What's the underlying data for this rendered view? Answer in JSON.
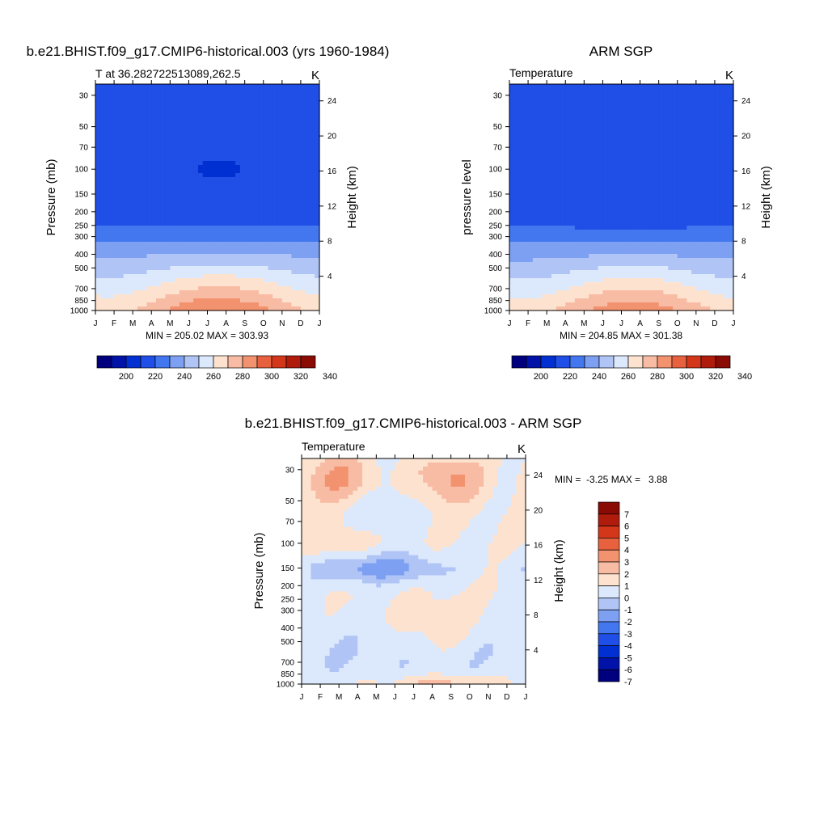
{
  "palette": {
    "temperature": [
      "#00007f",
      "#0012a8",
      "#0030d2",
      "#1f4fe6",
      "#4377f0",
      "#7da0f2",
      "#b0c5f5",
      "#dce8fc",
      "#fde3cf",
      "#f8bca4",
      "#f2926f",
      "#e8613f",
      "#d4361a",
      "#b01c0c",
      "#8a0a04"
    ],
    "difference": [
      "#00007f",
      "#0012a8",
      "#0030d2",
      "#1f4fe6",
      "#4377f0",
      "#7da0f2",
      "#b0c5f5",
      "#dce8fc",
      "#fde3cf",
      "#f8bca4",
      "#f2926f",
      "#e8613f",
      "#d4361a",
      "#b01c0c",
      "#8a0a04"
    ]
  },
  "chart_data": [
    {
      "type": "heatmap",
      "id": "model",
      "title": "b.e21.BHIST.f09_g17.CMIP6-historical.003 (yrs 1960-1984)",
      "left_string": "T at 36.282722513089,262.5",
      "right_string": "K",
      "ylabel": "Pressure (mb)",
      "ylabel_right": "Height (km)",
      "x_ticks": [
        "J",
        "F",
        "M",
        "A",
        "M",
        "J",
        "J",
        "A",
        "S",
        "O",
        "N",
        "D",
        "J"
      ],
      "y_ticks": [
        "30",
        "50",
        "70",
        "100",
        "150",
        "200",
        "250",
        "300",
        "400",
        "500",
        "700",
        "850",
        "1000"
      ],
      "y_ticks_right": [
        "24",
        "20",
        "16",
        "12",
        "8",
        "4"
      ],
      "ylim": [
        1000,
        25
      ],
      "stats": "MIN = 205.02 MAX = 303.93",
      "colorbar": {
        "orientation": "horizontal",
        "levels": [
          "200",
          "220",
          "240",
          "260",
          "280",
          "300",
          "320",
          "340"
        ]
      },
      "contour_levels": [
        190,
        200,
        210,
        220,
        230,
        240,
        250,
        260,
        270,
        280,
        290,
        300,
        310,
        320,
        330
      ]
    },
    {
      "type": "heatmap",
      "id": "obs",
      "title": "ARM SGP",
      "left_string": "Temperature",
      "right_string": "K",
      "ylabel": "pressure level",
      "ylabel_right": "Height (km)",
      "x_ticks": [
        "J",
        "F",
        "M",
        "A",
        "M",
        "J",
        "J",
        "A",
        "S",
        "O",
        "N",
        "D",
        "J"
      ],
      "y_ticks": [
        "30",
        "50",
        "70",
        "100",
        "150",
        "200",
        "250",
        "300",
        "400",
        "500",
        "700",
        "850",
        "1000"
      ],
      "y_ticks_right": [
        "24",
        "20",
        "16",
        "12",
        "8",
        "4"
      ],
      "ylim": [
        1000,
        25
      ],
      "stats": "MIN = 204.85 MAX = 301.38",
      "colorbar": {
        "orientation": "horizontal",
        "levels": [
          "200",
          "220",
          "240",
          "260",
          "280",
          "300",
          "320",
          "340"
        ]
      },
      "contour_levels": [
        190,
        200,
        210,
        220,
        230,
        240,
        250,
        260,
        270,
        280,
        290,
        300,
        310,
        320,
        330
      ]
    },
    {
      "type": "heatmap",
      "id": "diff",
      "title": "b.e21.BHIST.f09_g17.CMIP6-historical.003 - ARM SGP",
      "left_string": "Temperature",
      "right_string": "K",
      "ylabel": "Pressure (mb)",
      "ylabel_right": "Height (km)",
      "x_ticks": [
        "J",
        "F",
        "M",
        "A",
        "M",
        "J",
        "J",
        "A",
        "S",
        "O",
        "N",
        "D",
        "J"
      ],
      "y_ticks": [
        "30",
        "50",
        "70",
        "100",
        "150",
        "200",
        "250",
        "300",
        "400",
        "500",
        "700",
        "850",
        "1000"
      ],
      "y_ticks_right": [
        "24",
        "20",
        "16",
        "12",
        "8",
        "4"
      ],
      "ylim": [
        1000,
        25
      ],
      "stats": "MIN =  -3.25 MAX =   3.88",
      "colorbar": {
        "orientation": "vertical",
        "levels": [
          "7",
          "6",
          "5",
          "4",
          "3",
          "2",
          "1",
          "0",
          "-1",
          "-2",
          "-3",
          "-4",
          "-5",
          "-6",
          "-7"
        ]
      },
      "contour_levels": [
        -7,
        -6,
        -5,
        -4,
        -3,
        -2,
        -1,
        0,
        1,
        2,
        3,
        4,
        5,
        6,
        7
      ]
    }
  ]
}
